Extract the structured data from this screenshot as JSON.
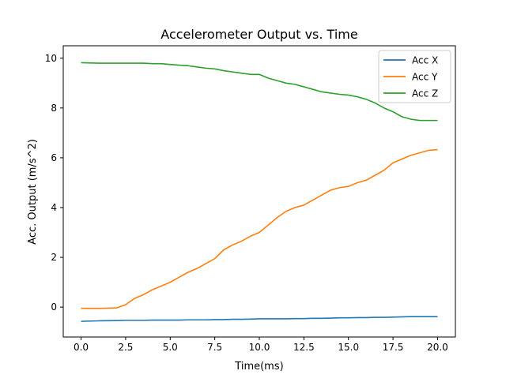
{
  "chart_data": {
    "type": "line",
    "title": "Accelerometer Output vs. Time",
    "xlabel": "Time(ms)",
    "ylabel": "Acc. Output (m/s^2)",
    "xlim": [
      -1.0,
      21.0
    ],
    "ylim": [
      -1.2,
      10.5
    ],
    "xticks": [
      0.0,
      2.5,
      5.0,
      7.5,
      10.0,
      12.5,
      15.0,
      17.5,
      20.0
    ],
    "xtick_labels": [
      "0.0",
      "2.5",
      "5.0",
      "7.5",
      "10.0",
      "12.5",
      "15.0",
      "17.5",
      "20.0"
    ],
    "yticks": [
      0,
      2,
      4,
      6,
      8,
      10
    ],
    "ytick_labels": [
      "0",
      "2",
      "4",
      "6",
      "8",
      "10"
    ],
    "grid": false,
    "legend": "top-right",
    "x": [
      0.0,
      1.0,
      2.0,
      2.5,
      3.0,
      3.5,
      4.0,
      4.5,
      5.0,
      5.5,
      6.0,
      6.5,
      7.0,
      7.5,
      8.0,
      8.5,
      9.0,
      9.5,
      10.0,
      10.5,
      11.0,
      11.5,
      12.0,
      12.5,
      13.0,
      13.5,
      14.0,
      14.5,
      15.0,
      15.5,
      16.0,
      16.5,
      17.0,
      17.5,
      18.0,
      18.5,
      19.0,
      19.5,
      20.0
    ],
    "series": [
      {
        "name": "Acc X",
        "color": "#1f77b4",
        "values": [
          -0.57,
          -0.55,
          -0.54,
          -0.53,
          -0.53,
          -0.53,
          -0.52,
          -0.52,
          -0.52,
          -0.52,
          -0.51,
          -0.51,
          -0.51,
          -0.5,
          -0.5,
          -0.49,
          -0.49,
          -0.48,
          -0.47,
          -0.47,
          -0.47,
          -0.47,
          -0.46,
          -0.46,
          -0.45,
          -0.45,
          -0.44,
          -0.43,
          -0.43,
          -0.42,
          -0.42,
          -0.41,
          -0.41,
          -0.4,
          -0.39,
          -0.38,
          -0.38,
          -0.38,
          -0.38
        ]
      },
      {
        "name": "Acc Y",
        "color": "#ff7f0e",
        "values": [
          -0.05,
          -0.05,
          -0.03,
          0.1,
          0.35,
          0.5,
          0.7,
          0.85,
          1.0,
          1.2,
          1.4,
          1.55,
          1.75,
          1.95,
          2.3,
          2.5,
          2.65,
          2.85,
          3.0,
          3.3,
          3.6,
          3.85,
          4.0,
          4.1,
          4.3,
          4.5,
          4.7,
          4.8,
          4.85,
          5.0,
          5.1,
          5.3,
          5.5,
          5.8,
          5.95,
          6.1,
          6.2,
          6.3,
          6.33
        ]
      },
      {
        "name": "Acc Z",
        "color": "#2ca02c",
        "values": [
          9.82,
          9.8,
          9.8,
          9.8,
          9.8,
          9.8,
          9.78,
          9.78,
          9.75,
          9.72,
          9.7,
          9.65,
          9.6,
          9.57,
          9.5,
          9.45,
          9.4,
          9.35,
          9.35,
          9.2,
          9.1,
          9.0,
          8.95,
          8.85,
          8.75,
          8.65,
          8.6,
          8.55,
          8.52,
          8.45,
          8.35,
          8.2,
          8.0,
          7.85,
          7.65,
          7.55,
          7.5,
          7.5,
          7.5
        ]
      }
    ]
  }
}
